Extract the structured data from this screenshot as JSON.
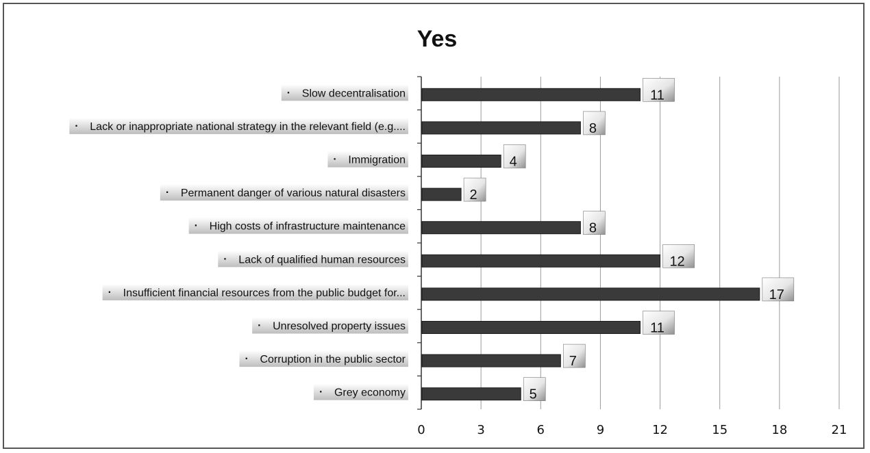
{
  "chart_data": {
    "type": "bar",
    "orientation": "horizontal",
    "title": "Yes",
    "categories": [
      "Slow decentralisation",
      "Lack or inappropriate national strategy in the relevant field (e.g....",
      "Immigration",
      "Permanent danger of various natural disasters",
      "High costs of infrastructure maintenance",
      "Lack of qualified human resources",
      "Insufficient financial resources from the public budget for...",
      "Unresolved property issues",
      "Corruption in the public sector",
      "Grey economy"
    ],
    "values": [
      11,
      8,
      4,
      2,
      8,
      12,
      17,
      11,
      7,
      5
    ],
    "xlim": [
      0,
      21
    ],
    "xticks": [
      "0",
      "3",
      "6",
      "9",
      "12",
      "15",
      "18",
      "21"
    ],
    "grid": true,
    "bullet": "·",
    "colors": {
      "bar": "#3a3a3a",
      "grid": "#9a9a9a",
      "label_band": "#c9c9c9",
      "axis": "#333333"
    }
  }
}
